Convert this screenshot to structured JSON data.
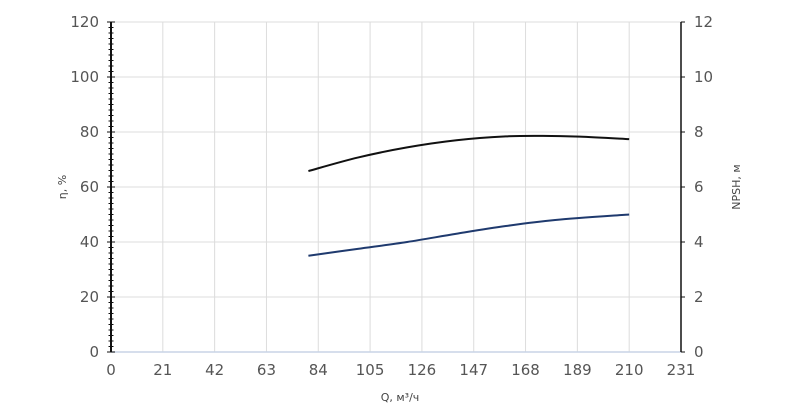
{
  "chart_data": {
    "type": "line",
    "xlabel": "Q, м³/ч",
    "ylabel_left": "η, %",
    "ylabel_right": "NPSH, м",
    "x_ticks": [
      "0",
      "21",
      "42",
      "63",
      "84",
      "105",
      "126",
      "147",
      "168",
      "189",
      "210",
      "231"
    ],
    "y_left_ticks": [
      "0",
      "20",
      "40",
      "60",
      "80",
      "100",
      "120"
    ],
    "y_right_ticks": [
      "0",
      "2",
      "4",
      "6",
      "8",
      "10",
      "12"
    ],
    "xlim": [
      0,
      231
    ],
    "ylim_left": [
      0,
      120
    ],
    "ylim_right": [
      0,
      12
    ],
    "grid": true,
    "series": [
      {
        "axis": "left",
        "color": "#111111",
        "x": [
          80,
          100,
          120,
          140,
          160,
          175,
          190,
          210
        ],
        "y": [
          65.8,
          70.7,
          74.4,
          77.0,
          78.4,
          78.6,
          78.3,
          77.4
        ]
      },
      {
        "axis": "right",
        "color": "#1f3a6e",
        "x": [
          80,
          100,
          120,
          140,
          160,
          180,
          210
        ],
        "y": [
          3.5,
          3.75,
          4.0,
          4.3,
          4.58,
          4.8,
          5.0
        ]
      }
    ]
  }
}
